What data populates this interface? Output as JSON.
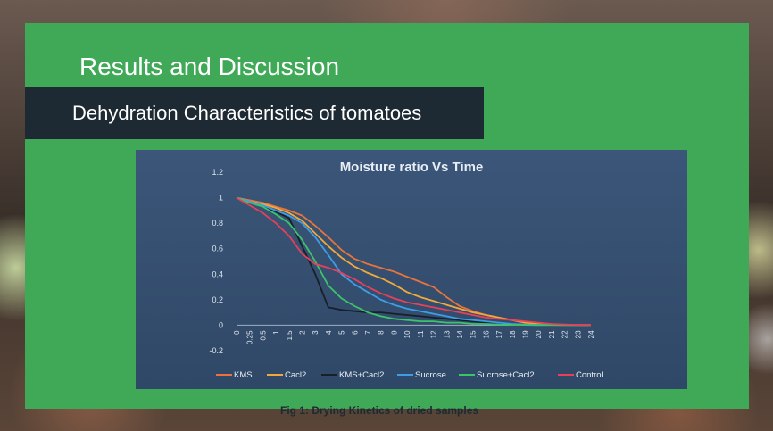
{
  "slide": {
    "title": "Results and Discussion",
    "subtitle": "Dehydration Characteristics of tomatoes",
    "caption": "Fig 1: Drying Kinetics of dried samples"
  },
  "chart_data": {
    "type": "line",
    "title": "Moisture ratio Vs Time",
    "xlabel": "",
    "ylabel": "",
    "categories": [
      "0",
      "0.25",
      "0.5",
      "1",
      "1.5",
      "2",
      "3",
      "4",
      "5",
      "6",
      "7",
      "8",
      "9",
      "10",
      "11",
      "12",
      "13",
      "14",
      "15",
      "16",
      "17",
      "18",
      "19",
      "20",
      "21",
      "22",
      "23",
      "24"
    ],
    "ylim": [
      -0.2,
      1.2
    ],
    "yticks": [
      "1.2",
      "1",
      "0.8",
      "0.6",
      "0.4",
      "0.2",
      "0",
      "-0.2"
    ],
    "ytick_values": [
      1.2,
      1,
      0.8,
      0.6,
      0.4,
      0.2,
      0,
      -0.2
    ],
    "grid": false,
    "legend_position": "bottom",
    "series": [
      {
        "name": "KMS",
        "color": "#e8743b",
        "values": [
          1,
          0.98,
          0.96,
          0.93,
          0.9,
          0.86,
          0.78,
          0.69,
          0.59,
          0.52,
          0.48,
          0.45,
          0.42,
          0.38,
          0.34,
          0.3,
          0.22,
          0.15,
          0.11,
          0.08,
          0.06,
          0.04,
          0.02,
          0.01,
          0.005,
          0.002,
          0.001,
          0.001
        ]
      },
      {
        "name": "Cacl2",
        "color": "#f2a93b",
        "values": [
          1,
          0.97,
          0.95,
          0.92,
          0.88,
          0.82,
          0.72,
          0.62,
          0.53,
          0.46,
          0.41,
          0.37,
          0.32,
          0.26,
          0.22,
          0.19,
          0.16,
          0.13,
          0.1,
          0.08,
          0.06,
          0.04,
          0.02,
          0.01,
          0.005,
          0.002,
          0.001,
          0.001
        ]
      },
      {
        "name": "KMS+Cacl2",
        "color": "#16202a",
        "values": [
          1,
          0.96,
          0.93,
          0.89,
          0.84,
          0.62,
          0.4,
          0.14,
          0.12,
          0.11,
          0.1,
          0.1,
          0.09,
          0.08,
          0.07,
          0.06,
          0.05,
          0.04,
          0.03,
          0.02,
          0.01,
          0.005,
          0.003,
          0.002,
          0.001,
          0.001,
          0.001,
          0.001
        ]
      },
      {
        "name": "Sucrose",
        "color": "#3d9ee8",
        "values": [
          1,
          0.97,
          0.94,
          0.9,
          0.86,
          0.8,
          0.69,
          0.55,
          0.4,
          0.32,
          0.26,
          0.2,
          0.16,
          0.13,
          0.11,
          0.09,
          0.07,
          0.05,
          0.04,
          0.03,
          0.02,
          0.01,
          0.005,
          0.003,
          0.002,
          0.001,
          0.001,
          0.001
        ]
      },
      {
        "name": "Sucrose+Cacl2",
        "color": "#3cc46a",
        "values": [
          1,
          0.96,
          0.93,
          0.87,
          0.8,
          0.67,
          0.5,
          0.31,
          0.21,
          0.15,
          0.1,
          0.07,
          0.05,
          0.04,
          0.03,
          0.03,
          0.02,
          0.02,
          0.01,
          0.01,
          0.005,
          0.003,
          0.002,
          0.001,
          0.001,
          0.001,
          0.001,
          0.001
        ]
      },
      {
        "name": "Control",
        "color": "#e8405a",
        "values": [
          1,
          0.94,
          0.88,
          0.8,
          0.7,
          0.56,
          0.48,
          0.45,
          0.41,
          0.36,
          0.3,
          0.25,
          0.21,
          0.18,
          0.16,
          0.14,
          0.12,
          0.1,
          0.08,
          0.06,
          0.05,
          0.04,
          0.03,
          0.02,
          0.01,
          0.005,
          0.002,
          0.001
        ]
      }
    ]
  }
}
